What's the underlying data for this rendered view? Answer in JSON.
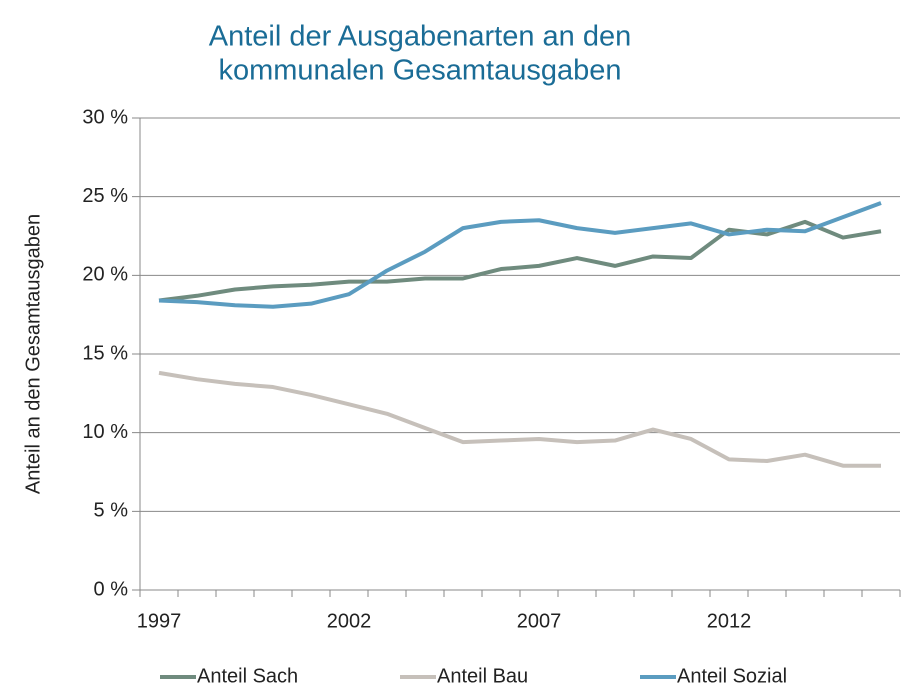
{
  "chart_data": {
    "type": "line",
    "title": "Anteil der Ausgabenarten an den kommunalen Gesamtausgaben",
    "ylabel": "Anteil an den Gesamtausgaben",
    "x": [
      1997,
      1998,
      1999,
      2000,
      2001,
      2002,
      2003,
      2004,
      2005,
      2006,
      2007,
      2008,
      2009,
      2010,
      2011,
      2012,
      2013,
      2014,
      2015,
      2016
    ],
    "xlim": [
      1996.5,
      2016.5
    ],
    "xticks": [
      1997,
      2002,
      2007,
      2012
    ],
    "ylim": [
      0,
      30
    ],
    "yticks": [
      {
        "value": 0,
        "label": "0 %"
      },
      {
        "value": 5,
        "label": "5 %"
      },
      {
        "value": 10,
        "label": "10 %"
      },
      {
        "value": 15,
        "label": "15 %"
      },
      {
        "value": 20,
        "label": "20 %"
      },
      {
        "value": 25,
        "label": "25 %"
      },
      {
        "value": 30,
        "label": "30 %"
      }
    ],
    "grid": true,
    "legend": "bottom",
    "series": [
      {
        "name": "Anteil Sach",
        "color": "#6f8b7e",
        "values": [
          18.4,
          18.7,
          19.1,
          19.3,
          19.4,
          19.6,
          19.6,
          19.8,
          19.8,
          20.4,
          20.6,
          21.1,
          20.6,
          21.2,
          21.1,
          22.9,
          22.6,
          23.4,
          22.4,
          22.8
        ]
      },
      {
        "name": "Anteil Bau",
        "color": "#c6c0ba",
        "values": [
          13.8,
          13.4,
          13.1,
          12.9,
          12.4,
          11.8,
          11.2,
          10.3,
          9.4,
          9.5,
          9.6,
          9.4,
          9.5,
          10.2,
          9.6,
          8.3,
          8.2,
          8.6,
          7.9,
          7.9
        ]
      },
      {
        "name": "Anteil Sozial",
        "color": "#5b9cc0",
        "values": [
          18.4,
          18.3,
          18.1,
          18.0,
          18.2,
          18.8,
          20.3,
          21.5,
          23.0,
          23.4,
          23.5,
          23.0,
          22.7,
          23.0,
          23.3,
          22.6,
          22.9,
          22.8,
          23.7,
          24.6
        ]
      }
    ]
  }
}
